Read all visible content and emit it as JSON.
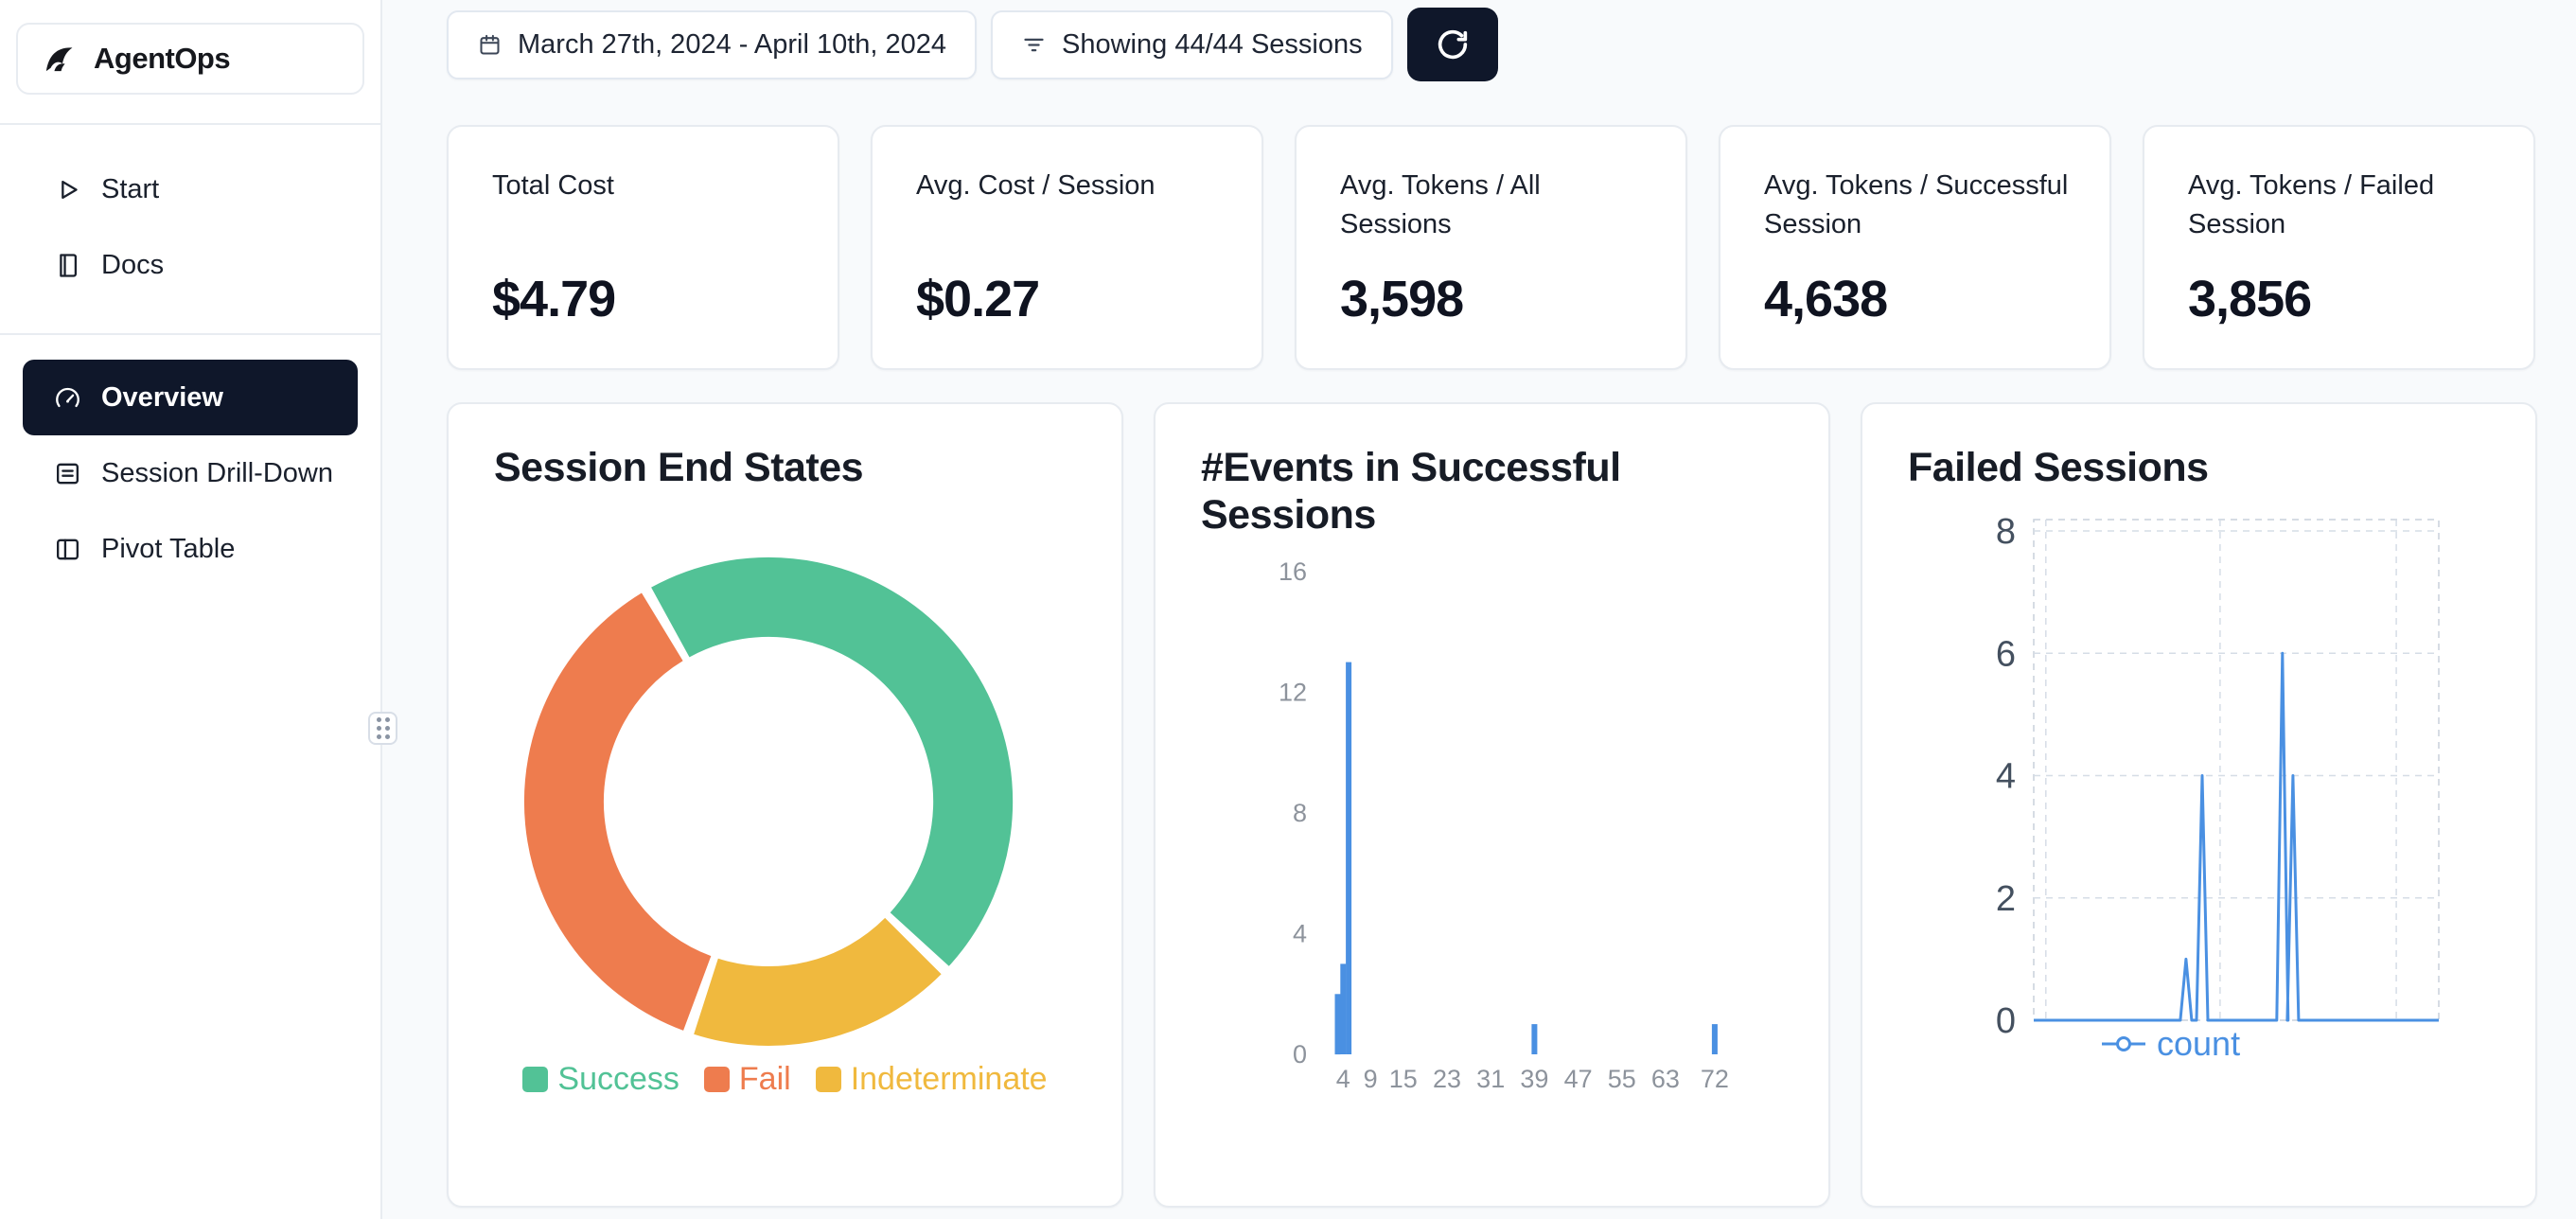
{
  "app": {
    "name": "AgentOps"
  },
  "sidebar": {
    "logo_text": "AgentOps",
    "nav_primary": [
      {
        "label": "Start",
        "icon": "play-icon"
      },
      {
        "label": "Docs",
        "icon": "docs-icon"
      }
    ],
    "nav_secondary": [
      {
        "label": "Overview",
        "icon": "gauge-icon",
        "active": true
      },
      {
        "label": "Session Drill-Down",
        "icon": "rows-icon",
        "active": false
      },
      {
        "label": "Pivot Table",
        "icon": "table-icon",
        "active": false
      }
    ]
  },
  "topbar": {
    "date_range": "March 27th, 2024 - April 10th, 2024",
    "date_icon": "calendar-icon",
    "sessions_filter": "Showing 44/44 Sessions",
    "filter_icon": "filter-icon",
    "refresh_icon": "refresh-icon"
  },
  "stats": [
    {
      "label": "Total Cost",
      "value": "$4.79"
    },
    {
      "label": "Avg. Cost / Session",
      "value": "$0.27"
    },
    {
      "label": "Avg. Tokens / All Sessions",
      "value": "3,598"
    },
    {
      "label": "Avg. Tokens / Successful Session",
      "value": "4,638"
    },
    {
      "label": "Avg. Tokens / Failed Session",
      "value": "3,856"
    }
  ],
  "colors": {
    "accent_dark": "#0f172a",
    "background": "#f8fafc",
    "card_border": "#e7ebf0",
    "success": "#52c296",
    "fail": "#ee7c4e",
    "indeterminate": "#f0b93e",
    "chart_blue": "#4a90e2"
  },
  "chart_data": [
    {
      "type": "pie",
      "donut": true,
      "title": "Session End States",
      "labels": [
        "Success",
        "Fail",
        "Indeterminate"
      ],
      "values": [
        20,
        16,
        8
      ],
      "colors": [
        "#52c296",
        "#ee7c4e",
        "#f0b93e"
      ],
      "legend_position": "bottom"
    },
    {
      "type": "bar",
      "title": "#Events in Successful Sessions",
      "bars": [
        {
          "x": 3,
          "count": 2
        },
        {
          "x": 4,
          "count": 3
        },
        {
          "x": 5,
          "count": 13
        },
        {
          "x": 39,
          "count": 1
        },
        {
          "x": 72,
          "count": 1
        }
      ],
      "xticks": [
        4,
        9,
        15,
        23,
        31,
        39,
        47,
        55,
        63,
        72
      ],
      "yticks": [
        0,
        4,
        8,
        12,
        16
      ],
      "xlim": [
        1,
        76
      ],
      "ylim": [
        0,
        16
      ],
      "bar_color": "#4a90e2",
      "grid": "off"
    },
    {
      "type": "line",
      "title": "Failed Sessions",
      "series": [
        {
          "name": "count",
          "color": "#4a90e2",
          "points": [
            {
              "x": 37.6,
              "y": 1
            },
            {
              "x": 41.6,
              "y": 4
            },
            {
              "x": 61.4,
              "y": 6
            },
            {
              "x": 64.0,
              "y": 4
            }
          ]
        }
      ],
      "baseline": 0,
      "yticks": [
        0,
        2,
        4,
        6,
        8
      ],
      "ylim": [
        0,
        8
      ],
      "xlim": [
        0,
        100
      ],
      "vgrid_pct": [
        3,
        46,
        89.5
      ],
      "grid": "dashed",
      "legend_position": "bottom"
    }
  ]
}
